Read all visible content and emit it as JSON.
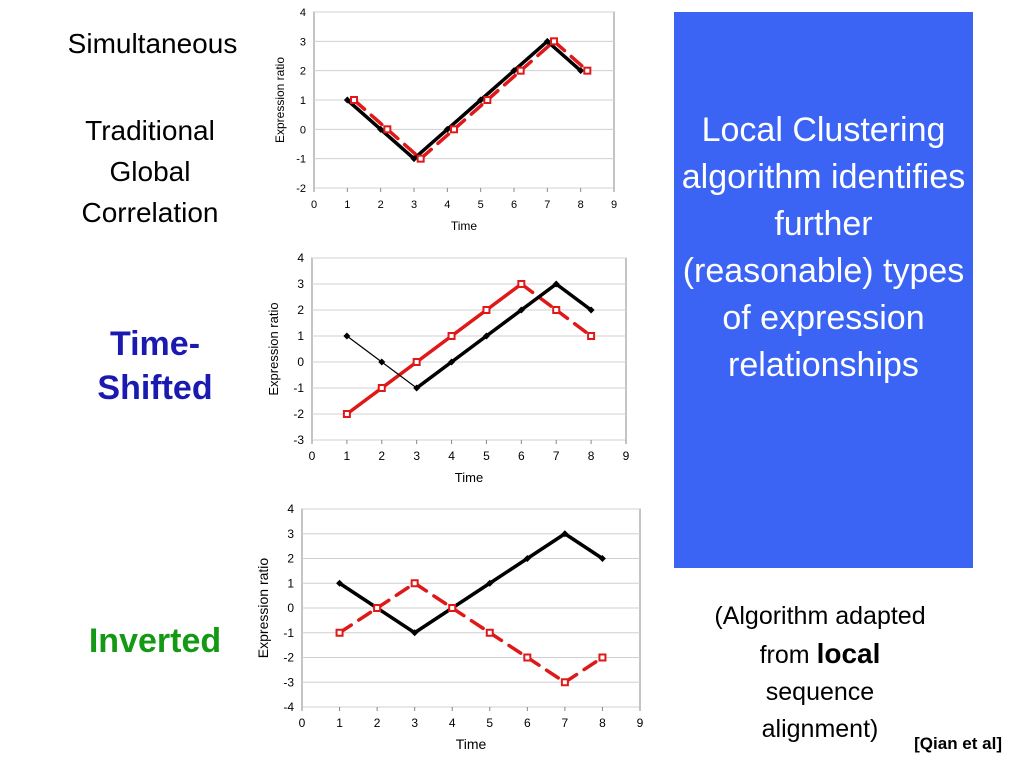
{
  "labels": {
    "simultaneous": "Simultaneous",
    "traditional": [
      "Traditional",
      "Global",
      "Correlation"
    ],
    "time_shifted": [
      "Time-",
      "Shifted"
    ],
    "inverted": "Inverted"
  },
  "callout": {
    "text": "Local Clustering algorithm identifies further (reasonable) types of expression relationships",
    "background": "#3b64f5"
  },
  "note": {
    "line1": "(Algorithm adapted",
    "line2_prefix": "from ",
    "line2_bold": "local",
    "line3": "sequence",
    "line4": "alignment)"
  },
  "citation": "[Qian et al]",
  "chart_data": [
    {
      "type": "line",
      "xlabel": "Time",
      "ylabel": "Expression ratio",
      "xlim": [
        0,
        9
      ],
      "ylim": [
        -2,
        4
      ],
      "xticks": [
        "0",
        "1",
        "2",
        "3",
        "4",
        "5",
        "6",
        "7",
        "8",
        "9"
      ],
      "yticks": [
        "-2",
        "-1",
        "0",
        "1",
        "2",
        "3",
        "4"
      ],
      "grid": true,
      "series": [
        {
          "color": "#000000",
          "style": "solid",
          "x": [
            1,
            2,
            3,
            4,
            5,
            6,
            7,
            8
          ],
          "values": [
            1,
            0,
            -1,
            0,
            1,
            2,
            3,
            2
          ]
        },
        {
          "color": "#e01818",
          "style": "dashed",
          "x": [
            1.2,
            2.2,
            3.2,
            4.2,
            5.2,
            6.2,
            7.2,
            8.2
          ],
          "values": [
            1,
            0,
            -1,
            0,
            1,
            2,
            3,
            2
          ]
        }
      ]
    },
    {
      "type": "line",
      "xlabel": "Time",
      "ylabel": "Expression ratio",
      "xlim": [
        0,
        9
      ],
      "ylim": [
        -3,
        4
      ],
      "xticks": [
        "0",
        "1",
        "2",
        "3",
        "4",
        "5",
        "6",
        "7",
        "8",
        "9"
      ],
      "yticks": [
        "-3",
        "-2",
        "-1",
        "0",
        "1",
        "2",
        "3",
        "4"
      ],
      "grid": true,
      "series": [
        {
          "color": "#e01818",
          "style": "solid-then-dashed",
          "x": [
            1,
            2,
            3,
            4,
            5,
            6,
            7,
            8
          ],
          "values": [
            -2,
            -1,
            0,
            1,
            2,
            3,
            2,
            1
          ]
        },
        {
          "color": "#000000",
          "style": "thin-then-solid",
          "x": [
            1,
            2,
            3,
            4,
            5,
            6,
            7,
            8
          ],
          "values": [
            1,
            0,
            -1,
            0,
            1,
            2,
            3,
            2
          ]
        }
      ]
    },
    {
      "type": "line",
      "xlabel": "Time",
      "ylabel": "Expression ratio",
      "xlim": [
        0,
        9
      ],
      "ylim": [
        -4,
        4
      ],
      "xticks": [
        "0",
        "1",
        "2",
        "3",
        "4",
        "5",
        "6",
        "7",
        "8",
        "9"
      ],
      "yticks": [
        "-4",
        "-3",
        "-2",
        "-1",
        "0",
        "1",
        "2",
        "3",
        "4"
      ],
      "grid": true,
      "series": [
        {
          "color": "#000000",
          "style": "solid",
          "x": [
            1,
            2,
            3,
            4,
            5,
            6,
            7,
            8
          ],
          "values": [
            1,
            0,
            -1,
            0,
            1,
            2,
            3,
            2
          ]
        },
        {
          "color": "#e01818",
          "style": "dashed",
          "x": [
            1,
            2,
            3,
            4,
            5,
            6,
            7,
            8
          ],
          "values": [
            -1,
            0,
            1,
            0,
            -1,
            -2,
            -3,
            -2
          ]
        }
      ]
    }
  ]
}
